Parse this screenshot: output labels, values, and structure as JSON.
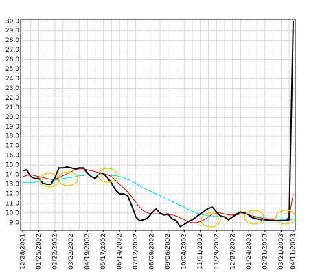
{
  "chart_data": {
    "type": "line",
    "categories": [
      "12/28/2001",
      null,
      null,
      null,
      "01/25/2002",
      null,
      null,
      null,
      "02/22/2002",
      null,
      null,
      null,
      "03/22/2002",
      null,
      null,
      null,
      "04/19/2002",
      null,
      null,
      null,
      "05/17/2002",
      null,
      null,
      null,
      "06/14/2002",
      null,
      null,
      null,
      "07/12/2002",
      null,
      null,
      null,
      "08/09/2002",
      null,
      null,
      null,
      "09/06/2002",
      null,
      null,
      null,
      "10/04/2002",
      null,
      null,
      null,
      "11/01/2002",
      null,
      null,
      null,
      "11/29/2002",
      null,
      null,
      null,
      "12/27/2002",
      null,
      null,
      null,
      "01/24/2003",
      null,
      null,
      null,
      "02/21/2003",
      null,
      null,
      null,
      "03/21/2003",
      null,
      null,
      "04/11/2003"
    ],
    "series": [
      {
        "color": "#00e0e8",
        "values": [
          13.2,
          13.2,
          13.2,
          13.2,
          13.3,
          13.3,
          13.3,
          13.3,
          13.4,
          13.5,
          13.6,
          13.7,
          13.7,
          13.8,
          13.9,
          13.9,
          14.0,
          14.0,
          14.0,
          14.0,
          14.0,
          14.0,
          13.9,
          13.9,
          13.8,
          13.7,
          13.5,
          13.3,
          13.1,
          12.8,
          12.6,
          12.4,
          12.2,
          12.0,
          11.8,
          11.6,
          11.4,
          11.2,
          11.0,
          10.8,
          10.6,
          10.4,
          10.2,
          10.0,
          9.9,
          9.8,
          9.7,
          9.7,
          9.7,
          9.6,
          9.6,
          9.6,
          9.6,
          9.6,
          9.6,
          9.6,
          9.6,
          9.5,
          9.5,
          9.5,
          9.5,
          9.4,
          9.4,
          9.4,
          9.3,
          9.3,
          9.3,
          9.3
        ]
      },
      {
        "color": "#e00000",
        "values": [
          13.8,
          13.9,
          14.0,
          13.9,
          13.8,
          13.7,
          13.6,
          13.5,
          13.5,
          13.7,
          13.9,
          14.1,
          14.3,
          14.5,
          14.6,
          14.6,
          14.5,
          14.4,
          14.3,
          14.2,
          14.1,
          14.0,
          13.8,
          13.4,
          13.0,
          12.6,
          12.2,
          11.7,
          11.1,
          10.6,
          10.2,
          10.0,
          9.9,
          9.9,
          9.9,
          9.8,
          9.8,
          9.8,
          9.7,
          9.5,
          9.3,
          9.1,
          9.0,
          9.0,
          9.1,
          9.3,
          9.6,
          9.9,
          10.0,
          10.0,
          9.9,
          9.8,
          9.8,
          9.8,
          9.9,
          9.9,
          9.8,
          9.7,
          9.6,
          9.5,
          9.4,
          9.3,
          9.3,
          9.2,
          9.2,
          9.2,
          9.6,
          12.0
        ]
      },
      {
        "color": "#000000",
        "values": [
          14.4,
          14.5,
          13.8,
          13.6,
          13.6,
          13.1,
          13.0,
          13.0,
          13.7,
          14.7,
          14.7,
          14.8,
          14.7,
          14.6,
          14.7,
          14.7,
          14.2,
          13.8,
          13.6,
          14.2,
          14.1,
          13.7,
          13.1,
          12.4,
          12.0,
          12.0,
          11.8,
          10.8,
          9.6,
          9.2,
          9.3,
          9.5,
          10.0,
          10.4,
          10.0,
          9.8,
          9.9,
          9.4,
          9.2,
          8.6,
          8.8,
          9.1,
          9.3,
          9.6,
          9.9,
          10.2,
          10.5,
          10.6,
          10.1,
          9.7,
          9.6,
          9.3,
          9.6,
          9.9,
          10.1,
          10.0,
          9.8,
          9.5,
          9.4,
          9.3,
          9.3,
          9.2,
          9.2,
          9.2,
          9.2,
          9.2,
          9.3,
          30.0
        ]
      }
    ],
    "ylim": [
      8.2,
      30.2
    ],
    "yticks": [
      {
        "value": 9,
        "label": "9.0"
      },
      {
        "value": 10,
        "label": "10.0"
      },
      {
        "value": 11,
        "label": "11.0"
      },
      {
        "value": 12,
        "label": "12.0"
      },
      {
        "value": 13,
        "label": "13.0"
      },
      {
        "value": 14,
        "label": "14.0"
      },
      {
        "value": 15,
        "label": "15.0"
      },
      {
        "value": 16,
        "label": "16.0"
      },
      {
        "value": 17,
        "label": "17.0"
      },
      {
        "value": 18,
        "label": "18.0"
      },
      {
        "value": 19,
        "label": "19.0"
      },
      {
        "value": 20,
        "label": "20.0"
      },
      {
        "value": 21,
        "label": "21.0"
      },
      {
        "value": 22,
        "label": "22.0"
      },
      {
        "value": 23,
        "label": "23.0"
      },
      {
        "value": 24,
        "label": "24.0"
      },
      {
        "value": 25,
        "label": "25.0"
      },
      {
        "value": 26,
        "label": "26.0"
      },
      {
        "value": 27,
        "label": "27.0"
      },
      {
        "value": 28,
        "label": "28.0"
      },
      {
        "value": 29,
        "label": "29.0"
      },
      {
        "value": 30,
        "label": "30.0"
      }
    ],
    "grid": true
  }
}
